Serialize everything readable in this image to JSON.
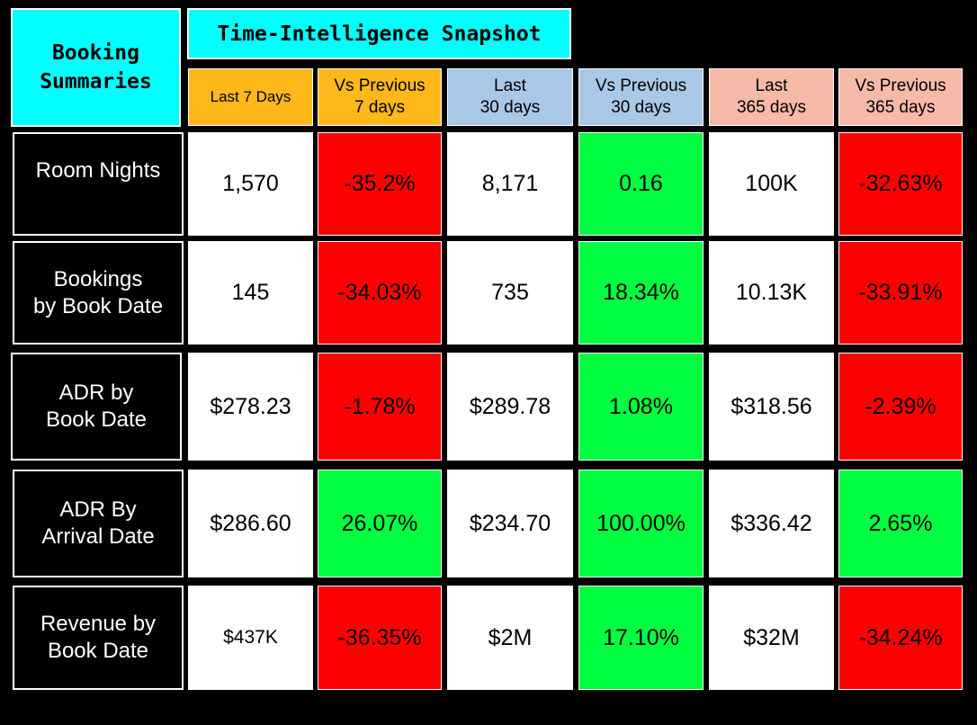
{
  "panel": {
    "title": "Booking\nSummaries"
  },
  "header": {
    "title": "Time-Intelligence Snapshot",
    "columns": [
      {
        "label": "Last 7 Days",
        "color": "#ffb81a"
      },
      {
        "label": "Vs Previous\n7 days",
        "color": "#ffb81a"
      },
      {
        "label": "Last\n30 days",
        "color": "#a9c8e6"
      },
      {
        "label": "Vs Previous\n30 days",
        "color": "#a9c8e6"
      },
      {
        "label": "Last\n365 days",
        "color": "#f7b9a8"
      },
      {
        "label": "Vs Previous\n365 days",
        "color": "#f7b9a8"
      }
    ]
  },
  "rows": [
    {
      "label": "Room Nights",
      "cells": [
        {
          "v": "1,570",
          "s": "white"
        },
        {
          "v": "-35.2%",
          "s": "red"
        },
        {
          "v": "8,171",
          "s": "white"
        },
        {
          "v": "0.16",
          "s": "green"
        },
        {
          "v": "100K",
          "s": "white"
        },
        {
          "v": "-32.63%",
          "s": "red"
        }
      ]
    },
    {
      "label": "Bookings\nby Book Date",
      "cells": [
        {
          "v": "145",
          "s": "white"
        },
        {
          "v": "-34.03%",
          "s": "red"
        },
        {
          "v": "735",
          "s": "white"
        },
        {
          "v": "18.34%",
          "s": "green"
        },
        {
          "v": "10.13K",
          "s": "white"
        },
        {
          "v": "-33.91%",
          "s": "red"
        }
      ]
    },
    {
      "label": "ADR by\nBook Date",
      "cells": [
        {
          "v": "$278.23",
          "s": "white"
        },
        {
          "v": "-1.78%",
          "s": "red"
        },
        {
          "v": "$289.78",
          "s": "white"
        },
        {
          "v": "1.08%",
          "s": "green"
        },
        {
          "v": "$318.56",
          "s": "white"
        },
        {
          "v": "-2.39%",
          "s": "red"
        }
      ]
    },
    {
      "label": "ADR By\nArrival Date",
      "cells": [
        {
          "v": "$286.60",
          "s": "white"
        },
        {
          "v": "26.07%",
          "s": "green"
        },
        {
          "v": "$234.70",
          "s": "white"
        },
        {
          "v": "100.00%",
          "s": "green"
        },
        {
          "v": "$336.42",
          "s": "white"
        },
        {
          "v": "2.65%",
          "s": "green"
        }
      ]
    },
    {
      "label": "Revenue by\nBook Date",
      "cells": [
        {
          "v": "$437K",
          "s": "white"
        },
        {
          "v": "-36.35%",
          "s": "red"
        },
        {
          "v": "$2M",
          "s": "white"
        },
        {
          "v": "17.10%",
          "s": "green"
        },
        {
          "v": "$32M",
          "s": "white"
        },
        {
          "v": "-34.24%",
          "s": "red"
        }
      ]
    }
  ]
}
